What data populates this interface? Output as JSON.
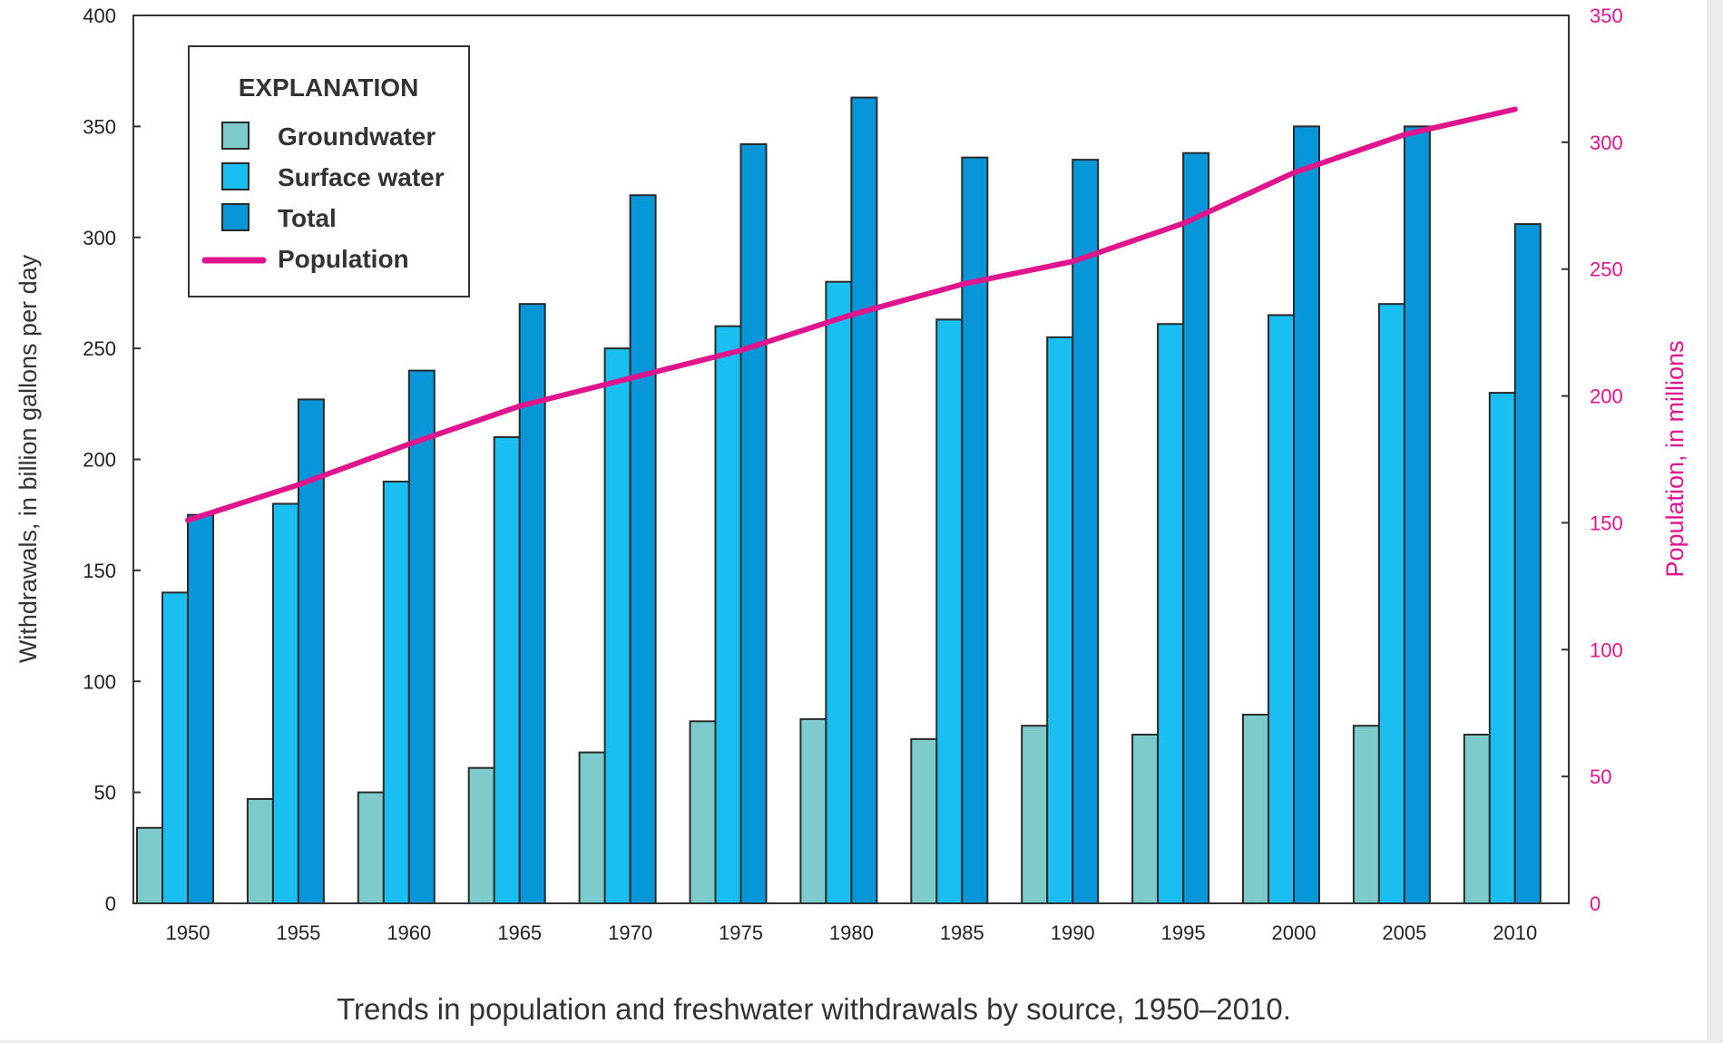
{
  "chart_data": {
    "type": "bar",
    "title": "Trends in population and freshwater withdrawals by source, 1950–2010.",
    "categories": [
      "1950",
      "1955",
      "1960",
      "1965",
      "1970",
      "1975",
      "1980",
      "1985",
      "1990",
      "1995",
      "2000",
      "2005",
      "2010"
    ],
    "ylabel": "Withdrawals, in billion gallons per day",
    "y2label": "Population, in millions",
    "ylim": [
      0,
      400
    ],
    "y2lim": [
      0,
      350
    ],
    "yticks": [
      0,
      50,
      100,
      150,
      200,
      250,
      300,
      350,
      400
    ],
    "y2ticks": [
      0,
      50,
      100,
      150,
      200,
      250,
      300,
      350
    ],
    "legend_title": "EXPLANATION",
    "legend_position": "top-left",
    "series": [
      {
        "name": "Groundwater",
        "type": "bar",
        "axis": "left",
        "color": "#7ecbcc",
        "values": [
          34,
          47,
          50,
          61,
          68,
          82,
          83,
          74,
          80,
          76,
          85,
          80,
          76
        ]
      },
      {
        "name": "Surface water",
        "type": "bar",
        "axis": "left",
        "color": "#19bff0",
        "values": [
          140,
          180,
          190,
          210,
          250,
          260,
          280,
          263,
          255,
          261,
          265,
          270,
          230
        ]
      },
      {
        "name": "Total",
        "type": "bar",
        "axis": "left",
        "color": "#0796d8",
        "values": [
          175,
          227,
          240,
          270,
          319,
          342,
          363,
          336,
          335,
          338,
          350,
          350,
          306
        ]
      },
      {
        "name": "Population",
        "type": "line",
        "axis": "right",
        "color": "#e0148c",
        "values": [
          151,
          165,
          181,
          196,
          207,
          218,
          232,
          244,
          253,
          268,
          288,
          303,
          313
        ]
      }
    ]
  }
}
